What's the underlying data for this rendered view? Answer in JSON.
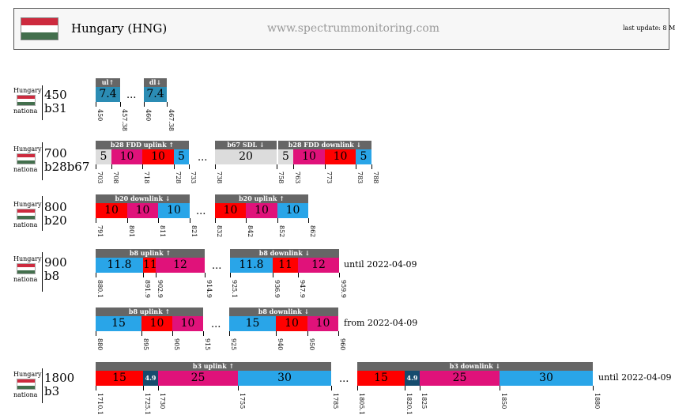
{
  "header": {
    "title": "Hungary (HNG)",
    "site": "www.spectrummonitoring.com",
    "last_update": "last update: 8 M"
  },
  "colors": {
    "flag_red": "#cd2a3e",
    "flag_white": "#ffffff",
    "flag_green": "#436f4d",
    "teal": "#2b8cb4",
    "light_gray": "#dcdcdc",
    "magenta": "#e0127a",
    "red": "#ff0000",
    "blue": "#29a5e8",
    "dark_teal": "#154c6e",
    "label_bg": "#666666"
  },
  "rows": [
    {
      "country": "Hungary",
      "operator": "nationa",
      "band": "450",
      "band_id": "b31",
      "groups": [
        {
          "label": "ul↑"
        },
        {
          "label": "dl↓"
        }
      ],
      "blocks": [
        "7.4",
        "7.4"
      ],
      "freqs": [
        "450",
        "457.38",
        "460",
        "467.38"
      ]
    },
    {
      "country": "Hungary",
      "operator": "nationa",
      "band": "700",
      "band_id": "b28b67",
      "groups": [
        {
          "label": "b28 FDD uplink ↑"
        },
        {
          "label": "b67 SDL ↓"
        },
        {
          "label": "b28 FDD downlink ↓"
        }
      ],
      "blocks": [
        "5",
        "10",
        "10",
        "5",
        "20",
        "5",
        "10",
        "10",
        "5"
      ],
      "freqs": [
        "703",
        "708",
        "718",
        "728",
        "733",
        "738",
        "758",
        "763",
        "773",
        "783",
        "788"
      ]
    },
    {
      "country": "Hungary",
      "operator": "nationa",
      "band": "800",
      "band_id": "b20",
      "groups": [
        {
          "label": "b20 downlink ↓"
        },
        {
          "label": "b20 uplink ↑"
        }
      ],
      "blocks": [
        "10",
        "10",
        "10",
        "10",
        "10",
        "10"
      ],
      "freqs": [
        "791",
        "801",
        "811",
        "821",
        "832",
        "842",
        "852",
        "862"
      ]
    },
    {
      "country": "Hungary",
      "operator": "nationa",
      "band": "900",
      "band_id": "b8",
      "groups": [
        {
          "label": "b8 uplink ↑"
        },
        {
          "label": "b8 downlink ↓"
        }
      ],
      "blocks": [
        "11.8",
        "11",
        "12",
        "11.8",
        "11",
        "12"
      ],
      "freqs": [
        "880.1",
        "891.9",
        "902.9",
        "914.9",
        "925.1",
        "936.9",
        "947.9",
        "959.9"
      ],
      "note": "until 2022-04-09"
    },
    {
      "groups": [
        {
          "label": "b8 uplink ↑"
        },
        {
          "label": "b8 downlink ↓"
        }
      ],
      "blocks": [
        "15",
        "10",
        "10",
        "15",
        "10",
        "10"
      ],
      "freqs": [
        "880",
        "895",
        "905",
        "915",
        "925",
        "940",
        "950",
        "960"
      ],
      "note": "from 2022-04-09"
    },
    {
      "country": "Hungary",
      "operator": "nationa",
      "band": "1800",
      "band_id": "b3",
      "groups": [
        {
          "label": "b3 uplink ↑"
        },
        {
          "label": "b3 downlink ↓"
        }
      ],
      "blocks": [
        "15",
        "4.9",
        "25",
        "30",
        "15",
        "4.9",
        "25",
        "30"
      ],
      "freqs": [
        "1710.1",
        "1725.1",
        "1730",
        "1755",
        "1785",
        "1805.1",
        "1820.1",
        "1825",
        "1850",
        "1880"
      ],
      "note": "until 2022-04-09"
    }
  ],
  "ellipsis": "..."
}
